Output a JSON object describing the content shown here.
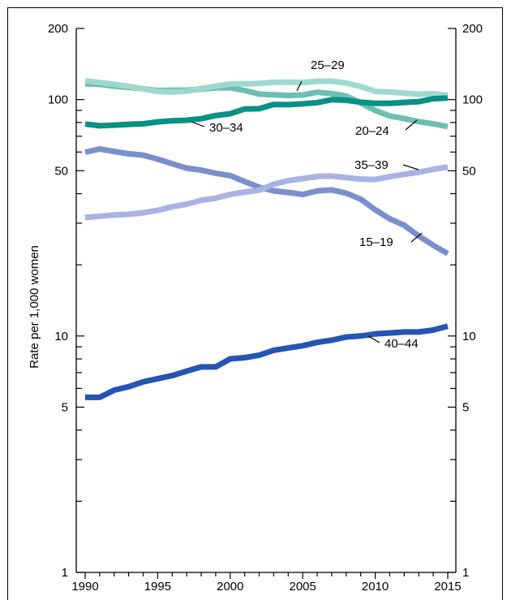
{
  "chart_data": {
    "type": "line",
    "title": "",
    "xlabel": "",
    "ylabel": "Rate per 1,000 women",
    "yscale": "log",
    "ylim": [
      1,
      200
    ],
    "xlim": [
      1990,
      2015
    ],
    "grid": false,
    "x_ticks": [
      "1990",
      "1995",
      "2000",
      "2005",
      "2010",
      "2015"
    ],
    "y_ticks": [
      "1",
      "5",
      "10",
      "50",
      "100",
      "200"
    ],
    "x": [
      1990,
      1991,
      1992,
      1993,
      1994,
      1995,
      1996,
      1997,
      1998,
      1999,
      2000,
      2001,
      2002,
      2003,
      2004,
      2005,
      2006,
      2007,
      2008,
      2009,
      2010,
      2011,
      2012,
      2013,
      2014,
      2015
    ],
    "series": [
      {
        "name": "15–19",
        "color": "#7a8fce",
        "values": [
          59.9,
          61.8,
          60.3,
          59.0,
          58.2,
          56.0,
          53.5,
          51.3,
          50.3,
          48.8,
          47.7,
          45.0,
          42.6,
          41.1,
          40.5,
          39.7,
          41.1,
          41.5,
          40.2,
          37.9,
          34.2,
          31.3,
          29.4,
          26.5,
          24.2,
          22.3
        ]
      },
      {
        "name": "20–24",
        "color": "#6cbfb2",
        "values": [
          116.5,
          116.0,
          114.0,
          112.5,
          111.1,
          109.2,
          109.6,
          109.6,
          110.7,
          112.2,
          112.3,
          109.2,
          105.5,
          104.8,
          104.1,
          104.6,
          107.4,
          106.0,
          103.5,
          96.8,
          90.0,
          85.3,
          83.1,
          80.7,
          79.0,
          76.8
        ]
      },
      {
        "name": "25–29",
        "color": "#9fd9cd",
        "values": [
          120.2,
          118.0,
          116.0,
          113.7,
          111.0,
          108.3,
          107.6,
          108.5,
          111.3,
          113.9,
          116.5,
          116.6,
          117.1,
          118.3,
          118.5,
          118.1,
          119.5,
          119.7,
          117.4,
          113.5,
          108.3,
          107.7,
          106.5,
          105.4,
          105.8,
          104.3
        ]
      },
      {
        "name": "30–34",
        "color": "#0a9185",
        "values": [
          78.8,
          77.5,
          78.0,
          78.6,
          79.0,
          80.5,
          81.3,
          81.8,
          83.0,
          85.6,
          87.1,
          91.3,
          91.5,
          95.4,
          95.2,
          95.9,
          97.1,
          99.9,
          99.3,
          97.5,
          96.5,
          96.5,
          97.3,
          98.0,
          100.8,
          101.5
        ]
      },
      {
        "name": "35–39",
        "color": "#a7b3e2",
        "values": [
          31.7,
          32.1,
          32.5,
          32.7,
          33.2,
          34.0,
          35.2,
          36.1,
          37.5,
          38.3,
          39.7,
          40.6,
          41.4,
          43.8,
          45.4,
          46.3,
          47.3,
          47.5,
          46.8,
          46.1,
          45.9,
          47.2,
          48.3,
          49.3,
          50.7,
          51.8
        ]
      },
      {
        "name": "40–44",
        "color": "#2654b4",
        "values": [
          5.5,
          5.5,
          5.9,
          6.1,
          6.4,
          6.6,
          6.8,
          7.1,
          7.4,
          7.4,
          8.0,
          8.1,
          8.3,
          8.7,
          8.9,
          9.1,
          9.4,
          9.6,
          9.9,
          10.0,
          10.2,
          10.3,
          10.4,
          10.4,
          10.6,
          11.0
        ]
      }
    ]
  }
}
